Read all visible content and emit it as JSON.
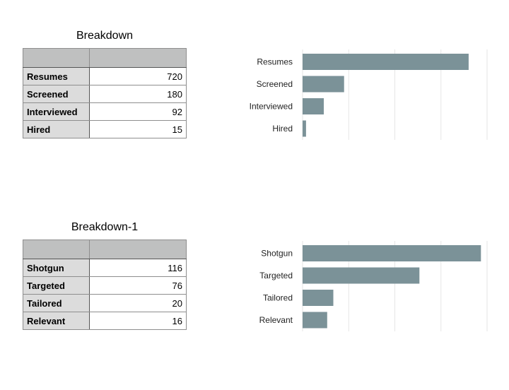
{
  "tables": [
    {
      "title": "Breakdown",
      "rows": [
        {
          "label": "Resumes",
          "value": "720"
        },
        {
          "label": "Screened",
          "value": "180"
        },
        {
          "label": "Interviewed",
          "value": "92"
        },
        {
          "label": "Hired",
          "value": "15"
        }
      ]
    },
    {
      "title": "Breakdown-1",
      "rows": [
        {
          "label": "Shotgun",
          "value": "116"
        },
        {
          "label": "Targeted",
          "value": "76"
        },
        {
          "label": "Tailored",
          "value": "20"
        },
        {
          "label": "Relevant",
          "value": "16"
        }
      ]
    }
  ],
  "chart_data": [
    {
      "type": "bar",
      "orientation": "horizontal",
      "categories": [
        "Resumes",
        "Screened",
        "Interviewed",
        "Hired"
      ],
      "values": [
        720,
        180,
        92,
        15
      ],
      "xlim": [
        0,
        800
      ],
      "grid": true,
      "bar_color": "#7b9298"
    },
    {
      "type": "bar",
      "orientation": "horizontal",
      "categories": [
        "Shotgun",
        "Targeted",
        "Tailored",
        "Relevant"
      ],
      "values": [
        116,
        76,
        20,
        16
      ],
      "xlim": [
        0,
        120
      ],
      "grid": true,
      "bar_color": "#7b9298"
    }
  ]
}
